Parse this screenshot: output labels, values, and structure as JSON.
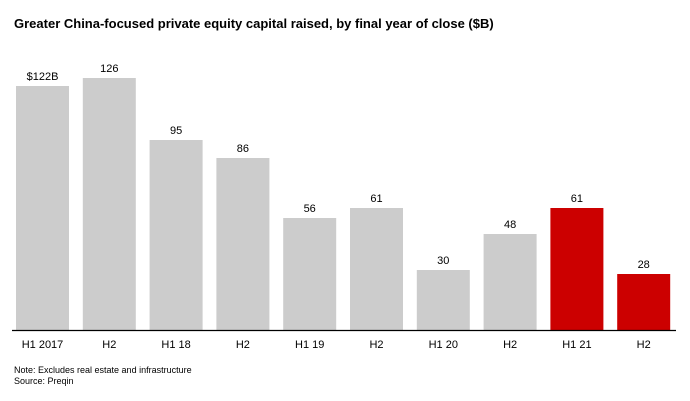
{
  "chart_data": {
    "type": "bar",
    "title": "Greater China-focused private equity capital raised, by final year of close ($B)",
    "categories": [
      "H1 2017",
      "H2",
      "H1 18",
      "H2",
      "H1 19",
      "H2",
      "H1 20",
      "H2",
      "H1 21",
      "H2"
    ],
    "values": [
      122,
      126,
      95,
      86,
      56,
      61,
      30,
      48,
      61,
      28
    ],
    "data_labels": [
      "$122B",
      "126",
      "95",
      "86",
      "56",
      "61",
      "30",
      "48",
      "61",
      "28"
    ],
    "highlight": [
      false,
      false,
      false,
      false,
      false,
      false,
      false,
      false,
      true,
      true
    ],
    "ylim": [
      0,
      126
    ],
    "grid": false,
    "colors": {
      "default": "#cccccc",
      "highlight": "#cc0000",
      "axis": "#000000"
    }
  },
  "notes": {
    "note": "Note: Excludes real estate and infrastructure",
    "source": "Source: Preqin"
  }
}
